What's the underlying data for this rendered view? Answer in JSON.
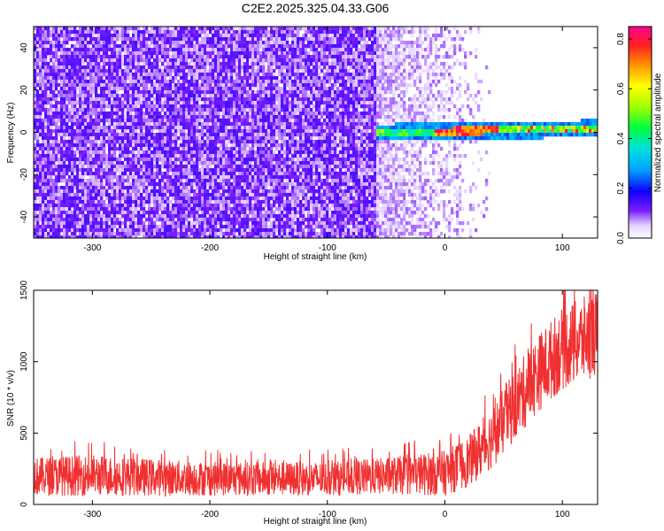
{
  "title": "C2E2.2025.325.04.33.G06",
  "chart_data": [
    {
      "type": "heatmap",
      "title": "C2E2.2025.325.04.33.G06",
      "xlabel": "Height of straight line (km)",
      "ylabel": "Frequency (Hz)",
      "xlim": [
        -350,
        130
      ],
      "ylim": [
        -50,
        50
      ],
      "x_ticks": [
        -300,
        -200,
        -100,
        0,
        100
      ],
      "x_tick_labels": [
        "-300",
        "-200",
        "-100",
        "0",
        "100"
      ],
      "y_ticks": [
        -40,
        -20,
        0,
        20,
        40
      ],
      "y_tick_labels": [
        "-40",
        "-20",
        "0",
        "20",
        "40"
      ],
      "colorbar": {
        "label": "Normalized spectral amplitude",
        "range": [
          0.0,
          0.85
        ],
        "ticks": [
          0.0,
          0.2,
          0.4,
          0.6,
          0.8
        ],
        "tick_labels": [
          "0.0",
          "0.2",
          "0.4",
          "0.6",
          "0.8"
        ]
      },
      "features": {
        "noise_region_x": [
          -350,
          -40
        ],
        "noise_amplitude": 0.12,
        "signal_start_x": -60,
        "signal_frequency_hz": [
          0,
          2
        ],
        "signal_peak_amplitude": 0.85,
        "signal_peak_x": [
          0,
          40
        ]
      }
    },
    {
      "type": "line",
      "xlabel": "Height of straight line (km)",
      "ylabel": "SNR (10 * v/v)",
      "xlim": [
        -350,
        130
      ],
      "ylim": [
        0,
        1500
      ],
      "x_ticks": [
        -300,
        -200,
        -100,
        0,
        100
      ],
      "x_tick_labels": [
        "-300",
        "-200",
        "-100",
        "0",
        "100"
      ],
      "y_ticks": [
        0,
        500,
        1000,
        1500
      ],
      "y_tick_labels": [
        "0",
        "500",
        "1000",
        "1500"
      ],
      "series": [
        {
          "name": "SNR",
          "color": "#f03030",
          "trend_x": [
            -350,
            -300,
            -250,
            -200,
            -150,
            -100,
            -50,
            0,
            20,
            40,
            60,
            80,
            100,
            130
          ],
          "trend_low": [
            60,
            60,
            60,
            60,
            60,
            60,
            70,
            60,
            120,
            250,
            450,
            650,
            800,
            900
          ],
          "trend_high": [
            330,
            350,
            320,
            300,
            300,
            300,
            330,
            380,
            480,
            680,
            950,
            1200,
            1380,
            1500
          ]
        }
      ]
    }
  ]
}
